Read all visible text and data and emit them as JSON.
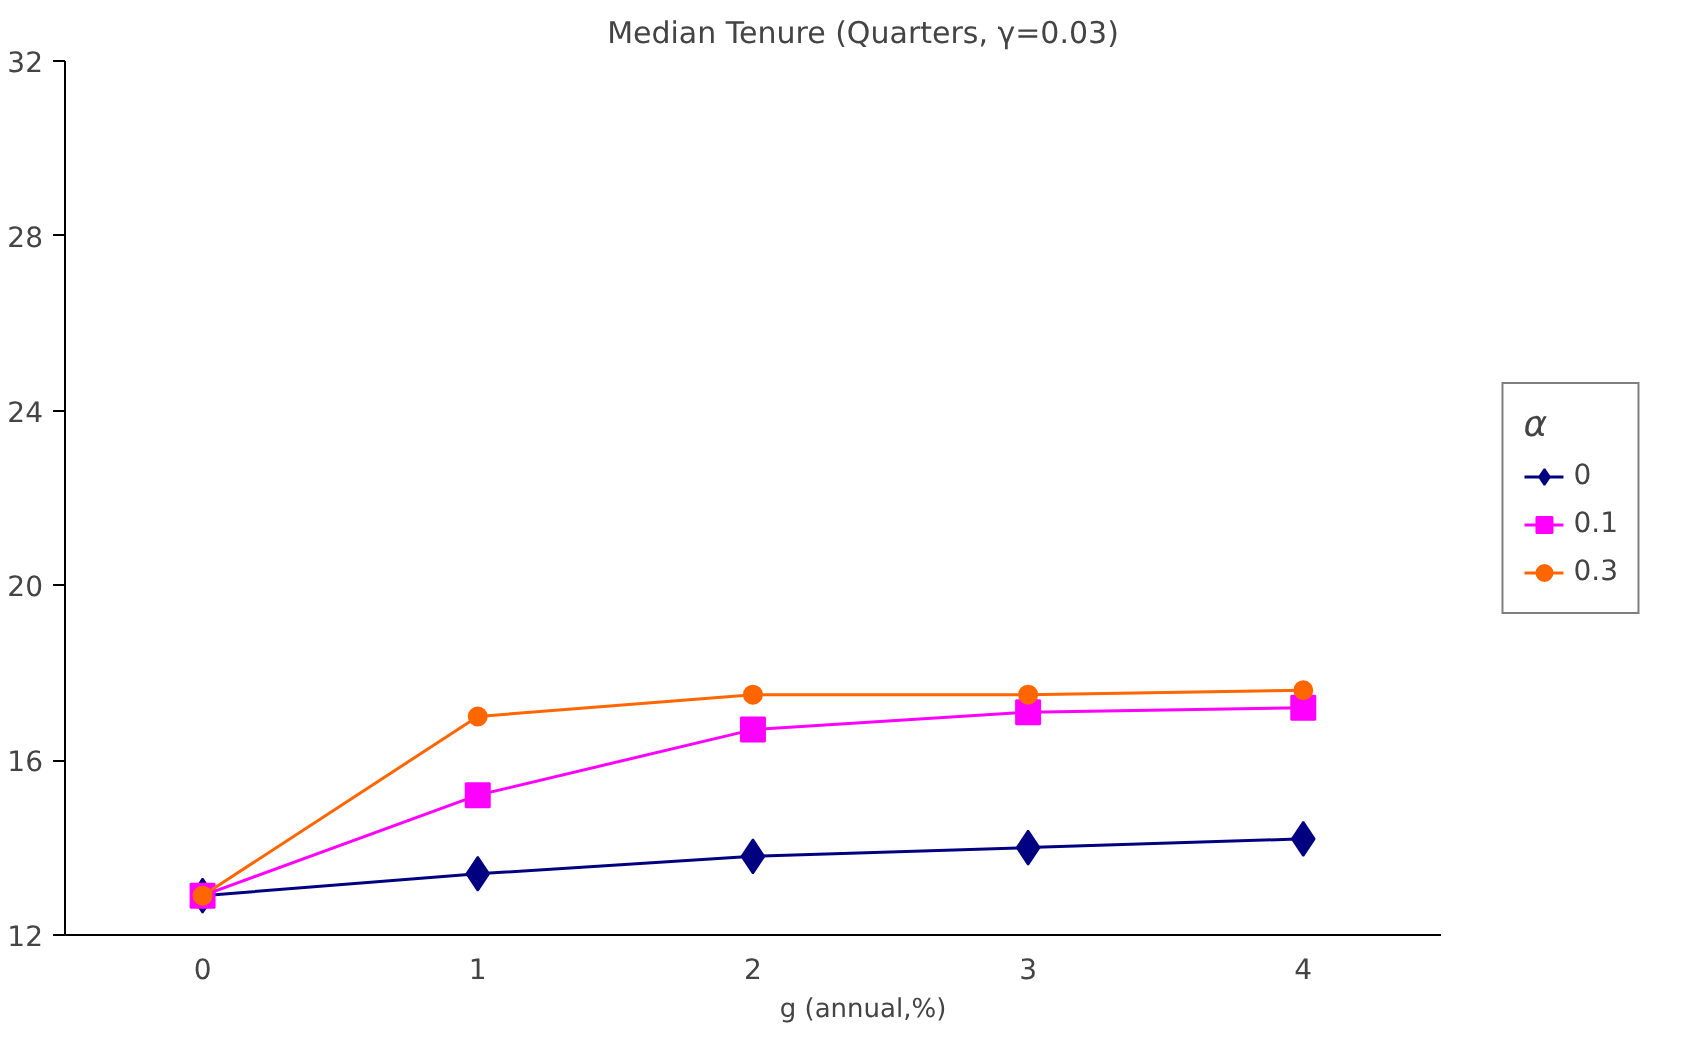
{
  "chart_data": {
    "type": "line",
    "title": "Median Tenure (Quarters, γ=0.03)",
    "xlabel": "g (annual,%)",
    "legend_title": "α",
    "categories": [
      "0",
      "1",
      "2",
      "3",
      "4"
    ],
    "ylim": [
      12,
      32
    ],
    "yticks": [
      12,
      16,
      20,
      24,
      28,
      32
    ],
    "grid": false,
    "legend": "right",
    "series": [
      {
        "name": "0",
        "color": "#000080",
        "marker": "diamond",
        "values": [
          12.9,
          13.4,
          13.8,
          14.0,
          14.2
        ]
      },
      {
        "name": "0.1",
        "color": "#ff00ff",
        "marker": "square",
        "values": [
          12.9,
          15.2,
          16.7,
          17.1,
          17.2
        ]
      },
      {
        "name": "0.3",
        "color": "#ff6600",
        "marker": "circle",
        "values": [
          12.9,
          17.0,
          17.5,
          17.5,
          17.6
        ]
      }
    ]
  }
}
